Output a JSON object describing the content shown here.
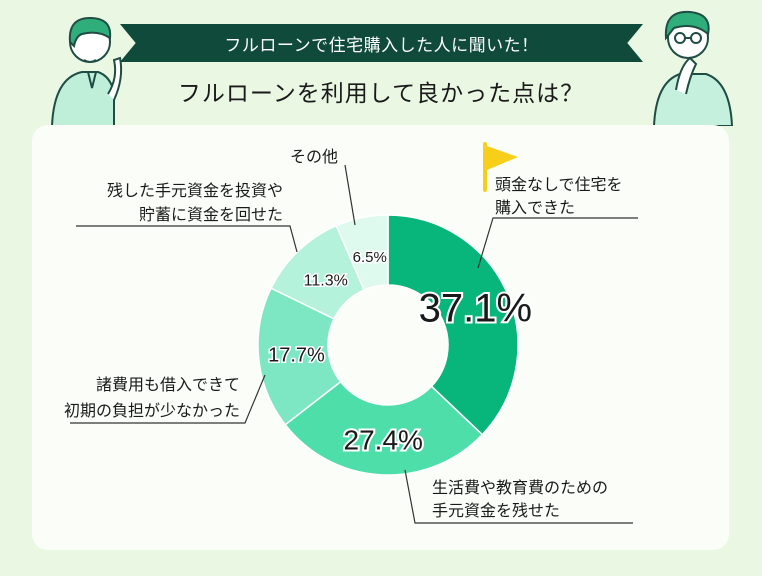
{
  "header": {
    "banner_text": "フルローンで住宅購入した人に聞いた！",
    "question": "フルローンを利用して良かった点は？"
  },
  "icons": {
    "flag": "flag-icon",
    "left_person": "person-thinking-icon",
    "right_person": "person-glasses-icon"
  },
  "colors": {
    "banner_bg": "#0f4a3a",
    "page_bg": "#eaf7e3",
    "flag": "#f7cf1b"
  },
  "chart_data": {
    "type": "pie",
    "variant": "donut",
    "unit": "%",
    "slices": [
      {
        "label": "頭金なしで住宅を購入できた",
        "label_lines": [
          "頭金なしで住宅を",
          "購入できた"
        ],
        "value": 37.1,
        "display": "37.1%",
        "color": "#08b57a"
      },
      {
        "label": "生活費や教育費のための手元資金を残せた",
        "label_lines": [
          "生活費や教育費のための",
          "手元資金を残せた"
        ],
        "value": 27.4,
        "display": "27.4%",
        "color": "#4ddeaa"
      },
      {
        "label": "諸費用も借入できて初期の負担が少なかった",
        "label_lines": [
          "諸費用も借入できて",
          "初期の負担が少なかった"
        ],
        "value": 17.7,
        "display": "17.7%",
        "color": "#7de6c2"
      },
      {
        "label": "残した手元資金を投資や貯蓄に資金を回せた",
        "label_lines": [
          "残した手元資金を投資や",
          "貯蓄に資金を回せた"
        ],
        "value": 11.3,
        "display": "11.3%",
        "color": "#b4f2dc"
      },
      {
        "label": "その他",
        "label_lines": [
          "その他"
        ],
        "value": 6.5,
        "display": "6.5%",
        "color": "#def9ee"
      }
    ]
  }
}
